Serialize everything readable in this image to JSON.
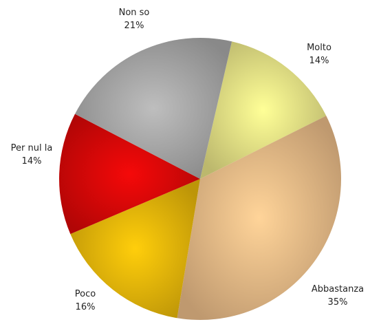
{
  "chart_data": {
    "type": "pie",
    "title": "",
    "slices": [
      {
        "label": "Molto",
        "value": 14,
        "value_label": "14%",
        "color": "#f1ec8c"
      },
      {
        "label": "Abbastanza",
        "value": 35,
        "value_label": "35%",
        "color": "#f5c48e"
      },
      {
        "label": "Poco",
        "value": 16,
        "value_label": "16%",
        "color": "#f2bf0a"
      },
      {
        "label": "Per nul la",
        "value": 14,
        "value_label": "14%",
        "color": "#e30808"
      },
      {
        "label": "Non so",
        "value": 21,
        "value_label": "21%",
        "color": "#b0b0b0"
      }
    ],
    "legend": "none",
    "labels": "outside"
  }
}
